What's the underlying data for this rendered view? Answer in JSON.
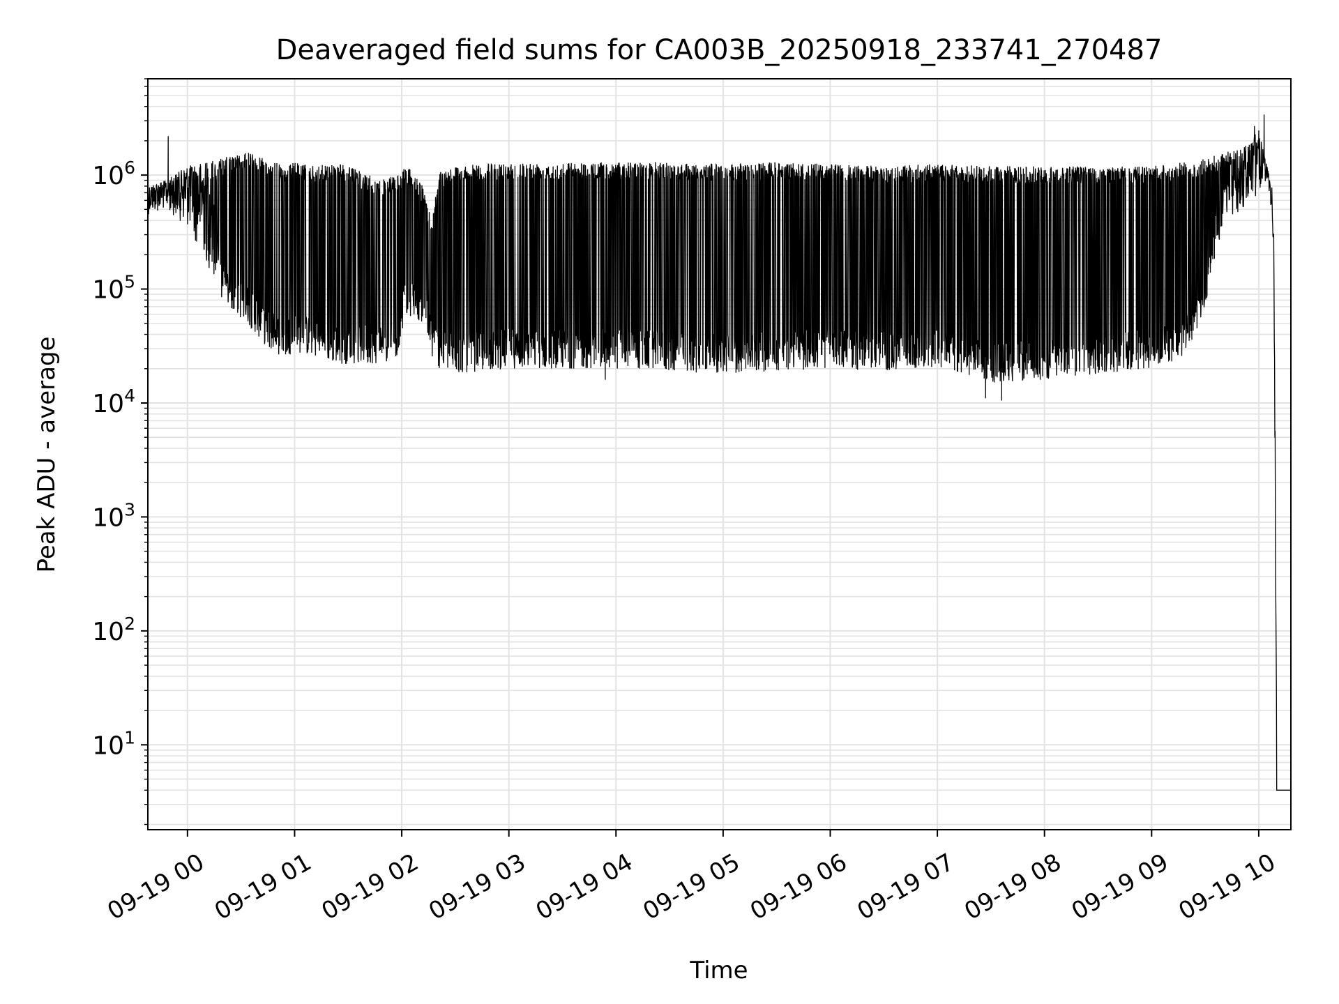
{
  "chart_data": {
    "type": "line",
    "title": "Deaveraged field sums for CA003B_20250918_233741_270487",
    "xlabel": "Time",
    "ylabel": "Peak ADU - average",
    "yscale": "log",
    "ylim": [
      1.8,
      7000000
    ],
    "xlim_hours": [
      -0.37,
      10.3
    ],
    "grid": true,
    "x_tick_labels": [
      "09-19 00",
      "09-19 01",
      "09-19 02",
      "09-19 03",
      "09-19 04",
      "09-19 05",
      "09-19 06",
      "09-19 07",
      "09-19 08",
      "09-19 09",
      "09-19 10"
    ],
    "x_tick_hours": [
      0,
      1,
      2,
      3,
      4,
      5,
      6,
      7,
      8,
      9,
      10
    ],
    "y_ticks": [
      {
        "value": 10,
        "base": "10",
        "exp": "1"
      },
      {
        "value": 100,
        "base": "10",
        "exp": "2"
      },
      {
        "value": 1000,
        "base": "10",
        "exp": "3"
      },
      {
        "value": 10000,
        "base": "10",
        "exp": "4"
      },
      {
        "value": 100000,
        "base": "10",
        "exp": "5"
      },
      {
        "value": 1000000,
        "base": "10",
        "exp": "6"
      }
    ],
    "series": [
      {
        "name": "field sum",
        "color": "#000000",
        "envelope_hours": [
          -0.37,
          -0.2,
          0.0,
          0.2,
          0.3,
          0.45,
          0.6,
          0.75,
          0.9,
          1.0,
          1.2,
          1.4,
          1.6,
          1.8,
          1.95,
          2.05,
          2.2,
          2.28,
          2.35,
          2.5,
          3.0,
          3.5,
          4.0,
          4.5,
          5.0,
          5.5,
          6.0,
          6.5,
          7.0,
          7.5,
          8.0,
          8.5,
          9.0,
          9.3,
          9.5,
          9.6,
          9.7,
          9.85,
          10.0,
          10.05,
          10.1,
          10.14,
          10.17,
          10.3
        ],
        "envelope_high": [
          800000,
          900000,
          1200000,
          1300000,
          1400000,
          1500000,
          1600000,
          1400000,
          1200000,
          1300000,
          1200000,
          1300000,
          1100000,
          900000,
          1000000,
          1200000,
          800000,
          400000,
          1100000,
          1200000,
          1300000,
          1300000,
          1300000,
          1300000,
          1250000,
          1300000,
          1250000,
          1200000,
          1250000,
          1200000,
          1200000,
          1200000,
          1200000,
          1300000,
          1400000,
          1500000,
          1600000,
          1700000,
          2500000,
          1500000,
          1000000,
          300000,
          4,
          4
        ],
        "envelope_low": [
          450000,
          500000,
          350000,
          150000,
          80000,
          60000,
          45000,
          30000,
          25000,
          28000,
          25000,
          22000,
          22000,
          22000,
          25000,
          60000,
          50000,
          25000,
          20000,
          18000,
          20000,
          20000,
          20000,
          19000,
          18000,
          19000,
          20000,
          19000,
          20000,
          15000,
          16000,
          18000,
          20000,
          25000,
          60000,
          200000,
          400000,
          500000,
          700000,
          900000,
          700000,
          300000,
          4,
          4
        ],
        "spike_peaks": [
          {
            "hour": -0.18,
            "value": 2200000
          },
          {
            "hour": 9.96,
            "value": 2700000
          },
          {
            "hour": 10.05,
            "value": 3400000
          }
        ],
        "dip_troughs": [
          {
            "hour": 7.45,
            "value": 11000
          },
          {
            "hour": 7.6,
            "value": 10500
          },
          {
            "hour": 3.9,
            "value": 16000
          }
        ]
      }
    ]
  }
}
